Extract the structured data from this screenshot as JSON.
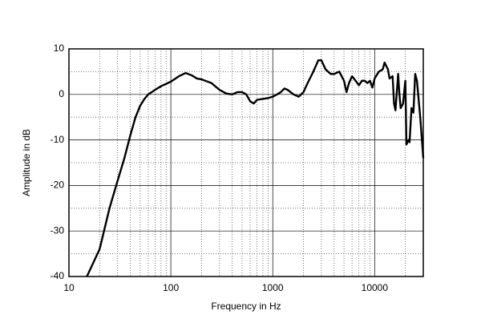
{
  "chart_data": {
    "type": "line",
    "xlabel": "Frequency in Hz",
    "ylabel": "Amplitude in dB",
    "xscale": "log",
    "xlim": [
      10,
      30000
    ],
    "ylim": [
      -40,
      10
    ],
    "xticks": [
      10,
      100,
      1000,
      10000
    ],
    "yticks": [
      10,
      0,
      -10,
      -20,
      -30,
      -40
    ],
    "grid": true,
    "x": [
      15,
      20,
      25,
      30,
      35,
      40,
      45,
      50,
      55,
      60,
      70,
      80,
      100,
      120,
      140,
      160,
      180,
      200,
      250,
      300,
      350,
      400,
      450,
      500,
      550,
      600,
      650,
      700,
      800,
      900,
      1000,
      1100,
      1200,
      1300,
      1400,
      1600,
      1800,
      2000,
      2200,
      2500,
      2800,
      3000,
      3300,
      3700,
      4000,
      4500,
      5000,
      5300,
      5600,
      6000,
      6500,
      7000,
      7500,
      8000,
      8500,
      9000,
      9500,
      10000,
      11000,
      12000,
      12500,
      13500,
      14000,
      15000,
      15500,
      16000,
      17000,
      17500,
      18000,
      19000,
      20000,
      20500,
      21500,
      22000,
      23000,
      24000,
      25000,
      26000,
      28000,
      30000
    ],
    "series": [
      {
        "color": "#000000",
        "values": [
          -40,
          -34,
          -25,
          -19,
          -14,
          -9,
          -5,
          -2.5,
          -1,
          0,
          1,
          1.8,
          2.8,
          4,
          4.7,
          4.2,
          3.5,
          3.3,
          2.5,
          1,
          0.2,
          0,
          0.5,
          0.5,
          0,
          -1.5,
          -2,
          -1.2,
          -1,
          -0.8,
          -0.5,
          0,
          0.5,
          1.3,
          1,
          0,
          -0.5,
          0.5,
          2.5,
          5,
          7.5,
          7.5,
          5.5,
          4.5,
          4.5,
          5,
          3,
          0.5,
          2.5,
          4,
          3,
          2,
          3,
          3,
          2.5,
          3,
          1.5,
          3.5,
          5,
          5.5,
          7,
          5.5,
          3.5,
          4,
          -2,
          -3.5,
          4.5,
          0,
          -3,
          -2,
          3,
          -11,
          -10,
          -10.5,
          -3,
          -4,
          4.5,
          3,
          -5,
          -14
        ]
      }
    ]
  }
}
